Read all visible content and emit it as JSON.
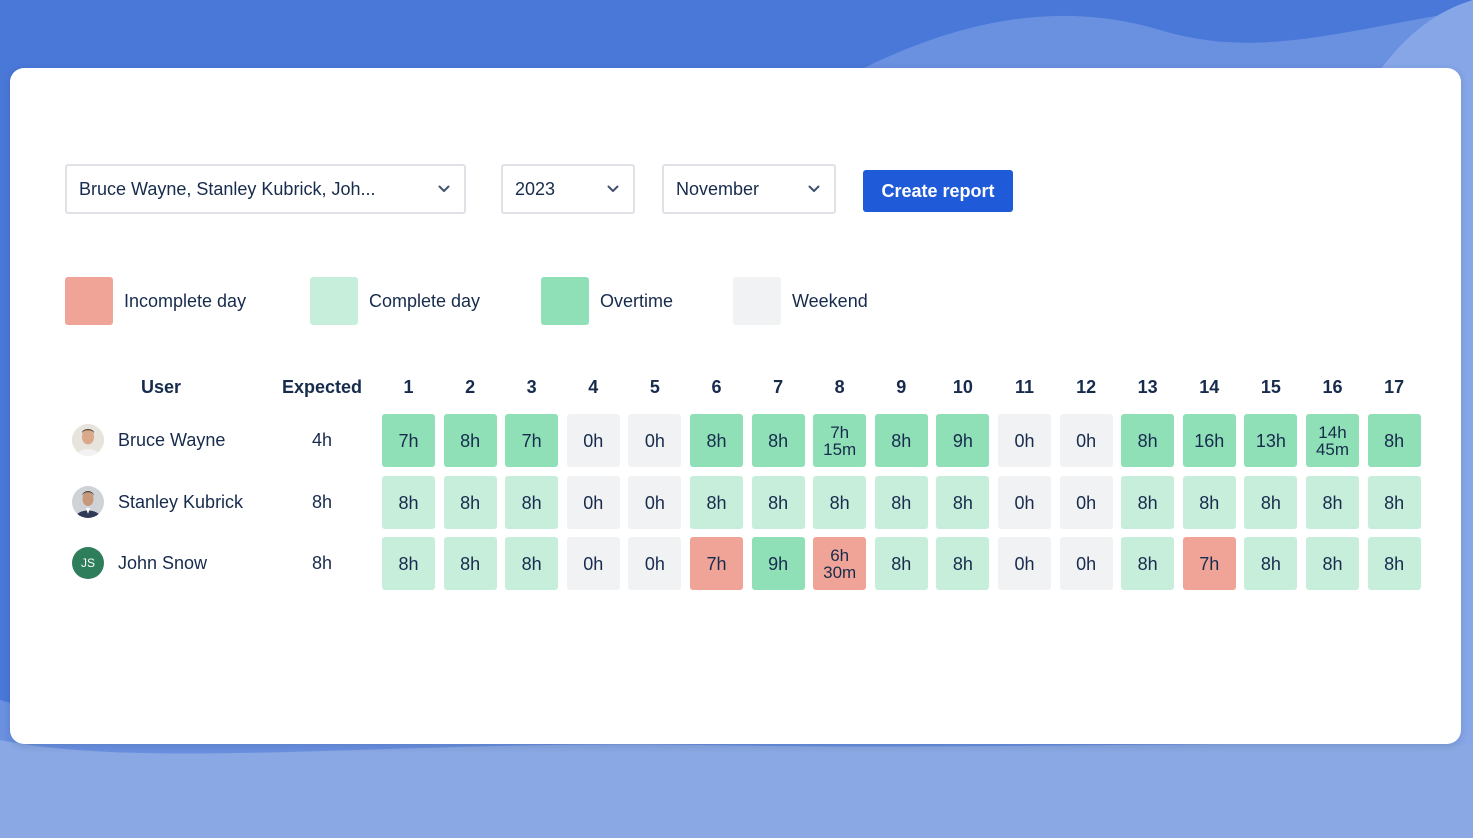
{
  "filters": {
    "users_value": "Bruce Wayne, Stanley Kubrick, Joh...",
    "year_value": "2023",
    "month_value": "November",
    "create_report_label": "Create report"
  },
  "legend": [
    {
      "key": "incomplete",
      "label": "Incomplete day",
      "color": "#f0a497"
    },
    {
      "key": "complete",
      "label": "Complete day",
      "color": "#c6eedb"
    },
    {
      "key": "overtime",
      "label": "Overtime",
      "color": "#8fdfb7"
    },
    {
      "key": "weekend",
      "label": "Weekend",
      "color": "#f1f2f4"
    }
  ],
  "table": {
    "user_header": "User",
    "expected_header": "Expected",
    "days": [
      "1",
      "2",
      "3",
      "4",
      "5",
      "6",
      "7",
      "8",
      "9",
      "10",
      "11",
      "12",
      "13",
      "14",
      "15",
      "16",
      "17"
    ],
    "rows": [
      {
        "name": "Bruce Wayne",
        "expected": "4h",
        "avatar": "photo-avatar",
        "cells": [
          {
            "v": "7h",
            "s": "overtime"
          },
          {
            "v": "8h",
            "s": "overtime"
          },
          {
            "v": "7h",
            "s": "overtime"
          },
          {
            "v": "0h",
            "s": "weekend"
          },
          {
            "v": "0h",
            "s": "weekend"
          },
          {
            "v": "8h",
            "s": "overtime"
          },
          {
            "v": "8h",
            "s": "overtime"
          },
          {
            "v": "7h 15m",
            "s": "overtime"
          },
          {
            "v": "8h",
            "s": "overtime"
          },
          {
            "v": "9h",
            "s": "overtime"
          },
          {
            "v": "0h",
            "s": "weekend"
          },
          {
            "v": "0h",
            "s": "weekend"
          },
          {
            "v": "8h",
            "s": "overtime"
          },
          {
            "v": "16h",
            "s": "overtime"
          },
          {
            "v": "13h",
            "s": "overtime"
          },
          {
            "v": "14h 45m",
            "s": "overtime"
          },
          {
            "v": "8h",
            "s": "overtime"
          }
        ]
      },
      {
        "name": "Stanley Kubrick",
        "expected": "8h",
        "avatar": "photo-avatar",
        "cells": [
          {
            "v": "8h",
            "s": "complete"
          },
          {
            "v": "8h",
            "s": "complete"
          },
          {
            "v": "8h",
            "s": "complete"
          },
          {
            "v": "0h",
            "s": "weekend"
          },
          {
            "v": "0h",
            "s": "weekend"
          },
          {
            "v": "8h",
            "s": "complete"
          },
          {
            "v": "8h",
            "s": "complete"
          },
          {
            "v": "8h",
            "s": "complete"
          },
          {
            "v": "8h",
            "s": "complete"
          },
          {
            "v": "8h",
            "s": "complete"
          },
          {
            "v": "0h",
            "s": "weekend"
          },
          {
            "v": "0h",
            "s": "weekend"
          },
          {
            "v": "8h",
            "s": "complete"
          },
          {
            "v": "8h",
            "s": "complete"
          },
          {
            "v": "8h",
            "s": "complete"
          },
          {
            "v": "8h",
            "s": "complete"
          },
          {
            "v": "8h",
            "s": "complete"
          }
        ]
      },
      {
        "name": "John Snow",
        "expected": "8h",
        "avatar": "initials-avatar",
        "initials": "JS",
        "avatar_color": "#2e7d5b",
        "cells": [
          {
            "v": "8h",
            "s": "complete"
          },
          {
            "v": "8h",
            "s": "complete"
          },
          {
            "v": "8h",
            "s": "complete"
          },
          {
            "v": "0h",
            "s": "weekend"
          },
          {
            "v": "0h",
            "s": "weekend"
          },
          {
            "v": "7h",
            "s": "incomplete"
          },
          {
            "v": "9h",
            "s": "overtime"
          },
          {
            "v": "6h 30m",
            "s": "incomplete"
          },
          {
            "v": "8h",
            "s": "complete"
          },
          {
            "v": "8h",
            "s": "complete"
          },
          {
            "v": "0h",
            "s": "weekend"
          },
          {
            "v": "0h",
            "s": "weekend"
          },
          {
            "v": "8h",
            "s": "complete"
          },
          {
            "v": "7h",
            "s": "incomplete"
          },
          {
            "v": "8h",
            "s": "complete"
          },
          {
            "v": "8h",
            "s": "complete"
          },
          {
            "v": "8h",
            "s": "complete"
          }
        ]
      }
    ]
  },
  "colors": {
    "background": "#4a78d8",
    "button": "#1f5ad8"
  }
}
